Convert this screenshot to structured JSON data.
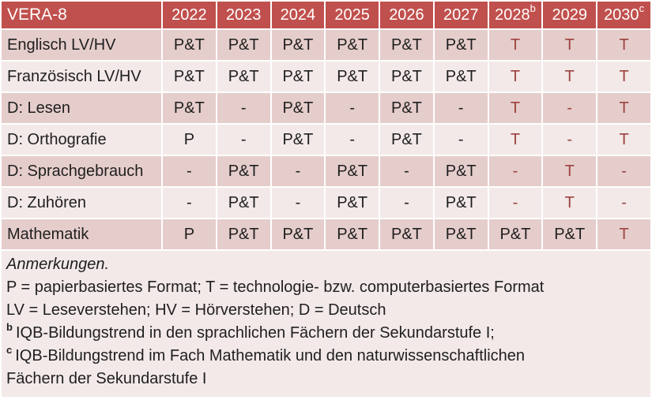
{
  "colors": {
    "header_bg": "#C0504D",
    "header_text": "#FFFFFF",
    "band_dark": "#E5CDCB",
    "band_light": "#F2E9E8",
    "body_text": "#1F1F1F",
    "accent_text": "#9E413E",
    "grid": "#FFFFFF"
  },
  "table": {
    "title": "VERA-8",
    "years": [
      {
        "label": "2022",
        "sup": ""
      },
      {
        "label": "2023",
        "sup": ""
      },
      {
        "label": "2024",
        "sup": ""
      },
      {
        "label": "2025",
        "sup": ""
      },
      {
        "label": "2026",
        "sup": ""
      },
      {
        "label": "2027",
        "sup": ""
      },
      {
        "label": "2028",
        "sup": "b"
      },
      {
        "label": "2029",
        "sup": ""
      },
      {
        "label": "2030",
        "sup": "c"
      }
    ],
    "rows": [
      {
        "label": "Englisch LV/HV",
        "cells": [
          {
            "text": "P&T",
            "red": false
          },
          {
            "text": "P&T",
            "red": false
          },
          {
            "text": "P&T",
            "red": false
          },
          {
            "text": "P&T",
            "red": false
          },
          {
            "text": "P&T",
            "red": false
          },
          {
            "text": "P&T",
            "red": false
          },
          {
            "text": "T",
            "red": true
          },
          {
            "text": "T",
            "red": true
          },
          {
            "text": "T",
            "red": true
          }
        ]
      },
      {
        "label": "Französisch LV/HV",
        "cells": [
          {
            "text": "P&T",
            "red": false
          },
          {
            "text": "P&T",
            "red": false
          },
          {
            "text": "P&T",
            "red": false
          },
          {
            "text": "P&T",
            "red": false
          },
          {
            "text": "P&T",
            "red": false
          },
          {
            "text": "P&T",
            "red": false
          },
          {
            "text": "T",
            "red": true
          },
          {
            "text": "T",
            "red": true
          },
          {
            "text": "T",
            "red": true
          }
        ]
      },
      {
        "label": "D: Lesen",
        "cells": [
          {
            "text": "P&T",
            "red": false
          },
          {
            "text": "-",
            "red": false
          },
          {
            "text": "P&T",
            "red": false
          },
          {
            "text": "-",
            "red": false
          },
          {
            "text": "P&T",
            "red": false
          },
          {
            "text": "-",
            "red": false
          },
          {
            "text": "T",
            "red": true
          },
          {
            "text": "-",
            "red": true
          },
          {
            "text": "T",
            "red": true
          }
        ]
      },
      {
        "label": "D: Orthografie",
        "cells": [
          {
            "text": "P",
            "red": false
          },
          {
            "text": "-",
            "red": false
          },
          {
            "text": "P&T",
            "red": false
          },
          {
            "text": "-",
            "red": false
          },
          {
            "text": "P&T",
            "red": false
          },
          {
            "text": "-",
            "red": false
          },
          {
            "text": "T",
            "red": true
          },
          {
            "text": "-",
            "red": true
          },
          {
            "text": "T",
            "red": true
          }
        ]
      },
      {
        "label": "D: Sprachgebrauch",
        "cells": [
          {
            "text": "-",
            "red": false
          },
          {
            "text": "P&T",
            "red": false
          },
          {
            "text": "-",
            "red": false
          },
          {
            "text": "P&T",
            "red": false
          },
          {
            "text": "-",
            "red": false
          },
          {
            "text": "P&T",
            "red": false
          },
          {
            "text": "-",
            "red": true
          },
          {
            "text": "T",
            "red": true
          },
          {
            "text": "-",
            "red": true
          }
        ]
      },
      {
        "label": "D: Zuhören",
        "cells": [
          {
            "text": "-",
            "red": false
          },
          {
            "text": "P&T",
            "red": false
          },
          {
            "text": "-",
            "red": false
          },
          {
            "text": "P&T",
            "red": false
          },
          {
            "text": "-",
            "red": false
          },
          {
            "text": "P&T",
            "red": false
          },
          {
            "text": "-",
            "red": true
          },
          {
            "text": "T",
            "red": true
          },
          {
            "text": "-",
            "red": true
          }
        ]
      },
      {
        "label": "Mathematik",
        "cells": [
          {
            "text": "P",
            "red": false
          },
          {
            "text": "P&T",
            "red": false
          },
          {
            "text": "P&T",
            "red": false
          },
          {
            "text": "P&T",
            "red": false
          },
          {
            "text": "P&T",
            "red": false
          },
          {
            "text": "P&T",
            "red": false
          },
          {
            "text": "P&T",
            "red": false
          },
          {
            "text": "P&T",
            "red": false
          },
          {
            "text": "T",
            "red": true
          }
        ]
      }
    ]
  },
  "notes": {
    "title": "Anmerkungen.",
    "legend_formats": "P = papierbasiertes Format; T = technologie- bzw. computerbasiertes Format",
    "legend_abbreviations": "LV = Leseverstehen; HV = Hörverstehen; D = Deutsch",
    "footnote_b": {
      "sup": "b",
      "text": "IQB-Bildungstrend in den sprachlichen Fächern der Sekundarstufe I;"
    },
    "footnote_c": {
      "sup": "c",
      "text": "IQB-Bildungstrend im Fach Mathematik und den naturwissenschaftlichen Fächern der Sekundarstufe I"
    }
  }
}
